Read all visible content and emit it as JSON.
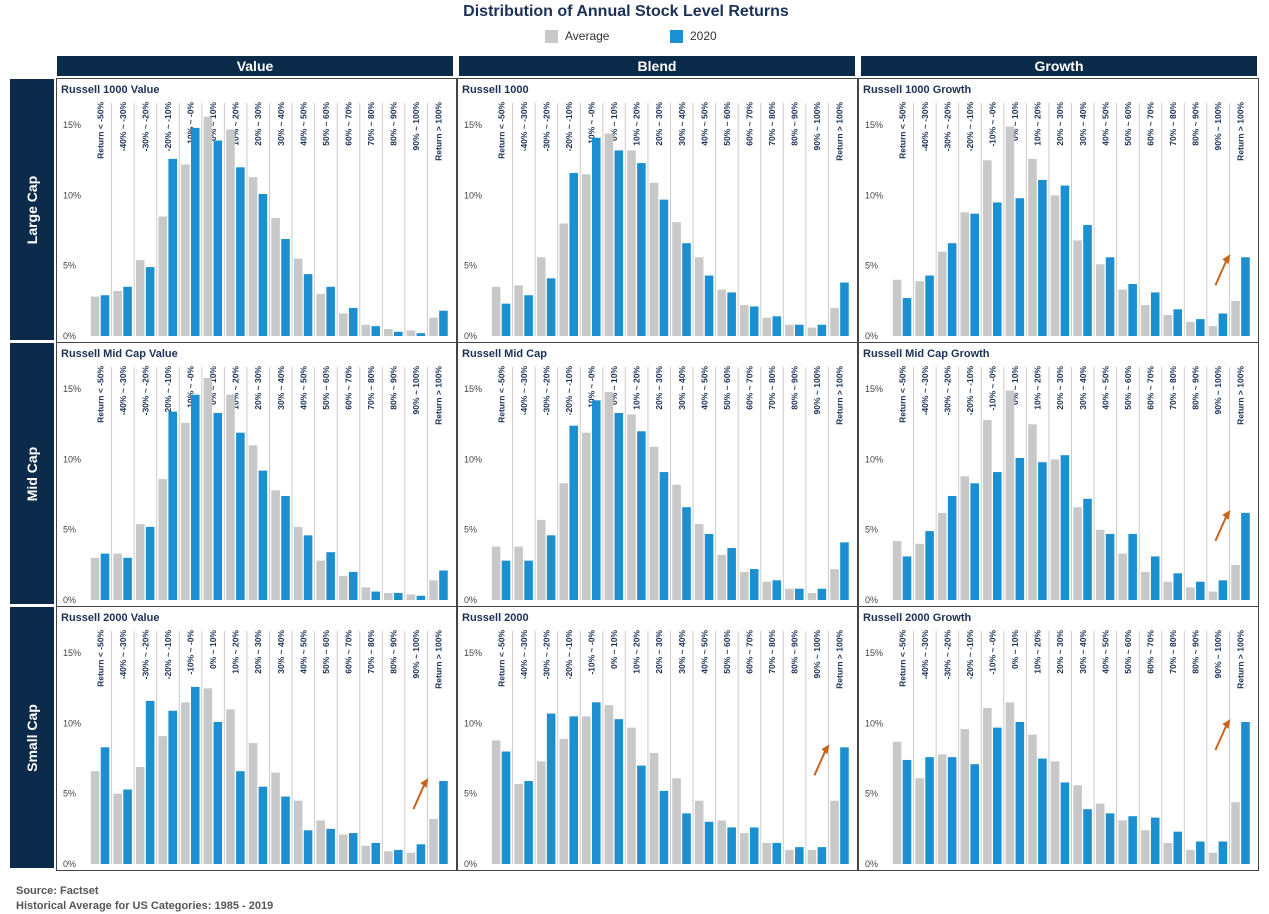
{
  "title": "Distribution of Annual Stock Level Returns",
  "legend": {
    "average": "Average",
    "current": "2020"
  },
  "colors": {
    "average": "#c8c8c8",
    "current": "#1b8fcf",
    "header": "#0c2b4b",
    "arrow": "#c8641e"
  },
  "columns": [
    "Value",
    "Blend",
    "Growth"
  ],
  "rows": [
    "Large Cap",
    "Mid Cap",
    "Small Cap"
  ],
  "source": {
    "line1": "Source: Factset",
    "line2": "Historical Average for US Categories: 1985 - 2019"
  },
  "chart_data": [
    {
      "type": "bar",
      "title": "Russell 1000 Value",
      "categories": [
        "Return < -50%",
        "-40% ~ -30%",
        "-30% ~ -20%",
        "-20% ~ -10%",
        "-10% ~ -0%",
        "0% ~ 10%",
        "10% ~ 20%",
        "20% ~ 30%",
        "30% ~ 40%",
        "40% ~ 50%",
        "50% ~ 60%",
        "60% ~ 70%",
        "70% ~ 80%",
        "80% ~ 90%",
        "90% ~ 100%",
        "Return > 100%"
      ],
      "y_ticks": [
        "0%",
        "5%",
        "10%",
        "15%"
      ],
      "ylim": [
        0,
        17
      ],
      "arrow": false,
      "series": [
        {
          "name": "Average",
          "values": [
            2.8,
            3.2,
            5.4,
            8.5,
            12.2,
            15.6,
            14.7,
            11.3,
            8.4,
            5.5,
            3.0,
            1.6,
            0.8,
            0.5,
            0.4,
            1.3
          ]
        },
        {
          "name": "2020",
          "values": [
            2.9,
            3.5,
            4.9,
            12.6,
            14.8,
            13.9,
            12.0,
            10.1,
            6.9,
            4.4,
            3.5,
            2.0,
            0.7,
            0.3,
            0.2,
            1.8
          ]
        }
      ]
    },
    {
      "type": "bar",
      "title": "Russell 1000",
      "categories": [
        "Return < -50%",
        "-40% ~ -30%",
        "-30% ~ -20%",
        "-20% ~ -10%",
        "-10% ~ -0%",
        "0% ~ 10%",
        "10% ~ 20%",
        "20% ~ 30%",
        "30% ~ 40%",
        "40% ~ 50%",
        "50% ~ 60%",
        "60% ~ 70%",
        "70% ~ 80%",
        "80% ~ 90%",
        "90% ~ 100%",
        "Return > 100%"
      ],
      "y_ticks": [
        "0%",
        "5%",
        "10%",
        "15%"
      ],
      "ylim": [
        0,
        17
      ],
      "arrow": false,
      "series": [
        {
          "name": "Average",
          "values": [
            3.5,
            3.6,
            5.6,
            8.0,
            11.5,
            14.4,
            13.2,
            10.9,
            8.1,
            5.6,
            3.3,
            2.2,
            1.3,
            0.8,
            0.6,
            2.0
          ]
        },
        {
          "name": "2020",
          "values": [
            2.3,
            2.9,
            4.1,
            11.6,
            14.1,
            13.2,
            12.3,
            9.7,
            6.6,
            4.3,
            3.1,
            2.1,
            1.4,
            0.8,
            0.8,
            3.8
          ]
        }
      ]
    },
    {
      "type": "bar",
      "title": "Russell 1000 Growth",
      "categories": [
        "Return < -50%",
        "-40% ~ -30%",
        "-30% ~ -20%",
        "-20% ~ -10%",
        "-10% ~ -0%",
        "0% ~ 10%",
        "10% ~ 20%",
        "20% ~ 30%",
        "30% ~ 40%",
        "40% ~ 50%",
        "50% ~ 60%",
        "60% ~ 70%",
        "70% ~ 80%",
        "80% ~ 90%",
        "90% ~ 100%",
        "Return > 100%"
      ],
      "y_ticks": [
        "0%",
        "5%",
        "10%",
        "15%"
      ],
      "ylim": [
        0,
        17
      ],
      "arrow": true,
      "series": [
        {
          "name": "Average",
          "values": [
            4.0,
            3.9,
            6.0,
            8.8,
            12.5,
            14.9,
            12.6,
            10.0,
            6.8,
            5.1,
            3.3,
            2.2,
            1.5,
            1.0,
            0.7,
            2.5
          ]
        },
        {
          "name": "2020",
          "values": [
            2.7,
            4.3,
            6.6,
            8.7,
            9.5,
            9.8,
            11.1,
            10.7,
            7.9,
            5.6,
            3.7,
            3.1,
            1.9,
            1.2,
            1.6,
            5.6
          ]
        }
      ]
    },
    {
      "type": "bar",
      "title": "Russell Mid Cap Value",
      "categories": [
        "Return < -50%",
        "-40% ~ -30%",
        "-30% ~ -20%",
        "-20% ~ -10%",
        "-10% ~ -0%",
        "0% ~ 10%",
        "10% ~ 20%",
        "20% ~ 30%",
        "30% ~ 40%",
        "40% ~ 50%",
        "50% ~ 60%",
        "60% ~ 70%",
        "70% ~ 80%",
        "80% ~ 90%",
        "90% ~ 100%",
        "Return > 100%"
      ],
      "y_ticks": [
        "0%",
        "5%",
        "10%",
        "15%"
      ],
      "ylim": [
        0,
        17
      ],
      "arrow": false,
      "series": [
        {
          "name": "Average",
          "values": [
            3.0,
            3.3,
            5.4,
            8.6,
            12.6,
            15.8,
            14.6,
            11.0,
            7.8,
            5.2,
            2.8,
            1.7,
            0.9,
            0.5,
            0.4,
            1.4
          ]
        },
        {
          "name": "2020",
          "values": [
            3.3,
            3.0,
            5.2,
            13.4,
            14.6,
            13.3,
            11.9,
            9.2,
            7.4,
            4.6,
            3.4,
            2.0,
            0.6,
            0.5,
            0.3,
            2.1
          ]
        }
      ]
    },
    {
      "type": "bar",
      "title": "Russell Mid Cap",
      "categories": [
        "Return < -50%",
        "-40% ~ -30%",
        "-30% ~ -20%",
        "-20% ~ -10%",
        "-10% ~ -0%",
        "0% ~ 10%",
        "10% ~ 20%",
        "20% ~ 30%",
        "30% ~ 40%",
        "40% ~ 50%",
        "50% ~ 60%",
        "60% ~ 70%",
        "70% ~ 80%",
        "80% ~ 90%",
        "90% ~ 100%",
        "Return > 100%"
      ],
      "y_ticks": [
        "0%",
        "5%",
        "10%",
        "15%"
      ],
      "ylim": [
        0,
        17
      ],
      "arrow": false,
      "series": [
        {
          "name": "Average",
          "values": [
            3.8,
            3.8,
            5.7,
            8.3,
            11.9,
            14.8,
            13.2,
            10.9,
            8.2,
            5.4,
            3.2,
            2.0,
            1.3,
            0.8,
            0.5,
            2.2
          ]
        },
        {
          "name": "2020",
          "values": [
            2.8,
            2.8,
            4.6,
            12.4,
            14.2,
            13.3,
            12.0,
            9.1,
            6.6,
            4.7,
            3.7,
            2.2,
            1.4,
            0.8,
            0.8,
            4.1
          ]
        }
      ]
    },
    {
      "type": "bar",
      "title": "Russell Mid Cap Growth",
      "categories": [
        "Return < -50%",
        "-40% ~ -30%",
        "-30% ~ -20%",
        "-20% ~ -10%",
        "-10% ~ -0%",
        "0% ~ 10%",
        "10% ~ 20%",
        "20% ~ 30%",
        "30% ~ 40%",
        "40% ~ 50%",
        "50% ~ 60%",
        "60% ~ 70%",
        "70% ~ 80%",
        "80% ~ 90%",
        "90% ~ 100%",
        "Return > 100%"
      ],
      "y_ticks": [
        "0%",
        "5%",
        "10%",
        "15%"
      ],
      "ylim": [
        0,
        17
      ],
      "arrow": true,
      "series": [
        {
          "name": "Average",
          "values": [
            4.2,
            4.0,
            6.2,
            8.8,
            12.8,
            14.9,
            12.5,
            10.0,
            6.6,
            5.0,
            3.3,
            2.0,
            1.3,
            0.9,
            0.6,
            2.5
          ]
        },
        {
          "name": "2020",
          "values": [
            3.1,
            4.9,
            7.4,
            8.3,
            9.1,
            10.1,
            9.8,
            10.3,
            7.2,
            4.7,
            4.7,
            3.1,
            1.9,
            1.3,
            1.4,
            6.2
          ]
        }
      ]
    },
    {
      "type": "bar",
      "title": "Russell 2000 Value",
      "categories": [
        "Return < -50%",
        "-40% ~ -30%",
        "-30% ~ -20%",
        "-20% ~ -10%",
        "-10% ~ -0%",
        "0% ~ 10%",
        "10% ~ 20%",
        "20% ~ 30%",
        "30% ~ 40%",
        "40% ~ 50%",
        "50% ~ 60%",
        "60% ~ 70%",
        "70% ~ 80%",
        "80% ~ 90%",
        "90% ~ 100%",
        "Return > 100%"
      ],
      "y_ticks": [
        "0%",
        "5%",
        "10%",
        "15%"
      ],
      "ylim": [
        0,
        17
      ],
      "arrow": true,
      "series": [
        {
          "name": "Average",
          "values": [
            6.6,
            5.0,
            6.9,
            9.1,
            11.5,
            12.5,
            11.0,
            8.6,
            6.5,
            4.5,
            3.1,
            2.1,
            1.3,
            0.9,
            0.8,
            3.2
          ]
        },
        {
          "name": "2020",
          "values": [
            8.3,
            5.3,
            11.6,
            10.9,
            12.6,
            10.1,
            6.6,
            5.5,
            4.8,
            2.4,
            2.5,
            2.2,
            1.5,
            1.0,
            1.4,
            5.9
          ]
        }
      ]
    },
    {
      "type": "bar",
      "title": "Russell 2000",
      "categories": [
        "Return < -50%",
        "-40% ~ -30%",
        "-30% ~ -20%",
        "-20% ~ -10%",
        "-10% ~ -0%",
        "0% ~ 10%",
        "10% ~ 20%",
        "20% ~ 30%",
        "30% ~ 40%",
        "40% ~ 50%",
        "50% ~ 60%",
        "60% ~ 70%",
        "70% ~ 80%",
        "80% ~ 90%",
        "90% ~ 100%",
        "Return > 100%"
      ],
      "y_ticks": [
        "0%",
        "5%",
        "10%",
        "15%"
      ],
      "ylim": [
        0,
        17
      ],
      "arrow": true,
      "series": [
        {
          "name": "Average",
          "values": [
            8.8,
            5.7,
            7.3,
            8.9,
            10.5,
            11.3,
            9.7,
            7.9,
            6.1,
            4.5,
            3.1,
            2.2,
            1.5,
            1.0,
            1.0,
            4.5
          ]
        },
        {
          "name": "2020",
          "values": [
            8.0,
            5.9,
            10.7,
            10.5,
            11.5,
            10.3,
            7.0,
            5.2,
            3.6,
            3.0,
            2.6,
            2.6,
            1.5,
            1.2,
            1.2,
            8.3
          ]
        }
      ]
    },
    {
      "type": "bar",
      "title": "Russell 2000 Growth",
      "categories": [
        "Return < -50%",
        "-40% ~ -30%",
        "-30% ~ -20%",
        "-20% ~ -10%",
        "-10% ~ -0%",
        "0% ~ 10%",
        "10% ~ 20%",
        "20% ~ 30%",
        "30% ~ 40%",
        "40% ~ 50%",
        "50% ~ 60%",
        "60% ~ 70%",
        "70% ~ 80%",
        "80% ~ 90%",
        "90% ~ 100%",
        "Return > 100%"
      ],
      "y_ticks": [
        "0%",
        "5%",
        "10%",
        "15%"
      ],
      "ylim": [
        0,
        17
      ],
      "arrow": true,
      "series": [
        {
          "name": "Average",
          "values": [
            8.7,
            6.1,
            7.8,
            9.6,
            11.1,
            11.5,
            9.2,
            7.3,
            5.6,
            4.3,
            3.1,
            2.4,
            1.5,
            1.0,
            0.8,
            4.4
          ]
        },
        {
          "name": "2020",
          "values": [
            7.4,
            7.6,
            7.6,
            7.1,
            9.7,
            10.1,
            7.5,
            5.8,
            3.9,
            3.6,
            3.4,
            3.3,
            2.3,
            1.6,
            1.6,
            10.1
          ]
        }
      ]
    }
  ]
}
